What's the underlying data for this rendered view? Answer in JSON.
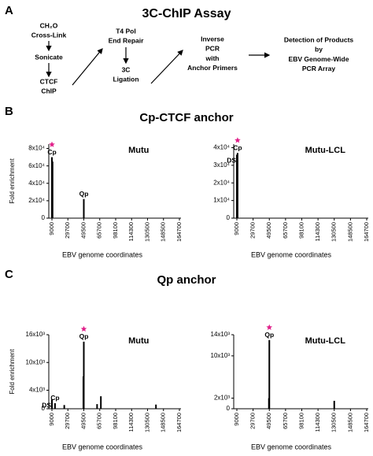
{
  "diagram": {
    "label": "A",
    "title": "3C-ChIP Assay",
    "steps": [
      [
        "CH₂O",
        "Cross-Link"
      ],
      [
        "Sonicate"
      ],
      [
        "CTCF",
        "ChIP"
      ],
      [
        "T4 Pol",
        "End Repair"
      ],
      [
        "3C",
        "Ligation"
      ],
      [
        "Inverse",
        "PCR",
        "with",
        "Anchor Primers"
      ],
      [
        "Detection of Products",
        "by",
        "EBV Genome-Wide",
        "PCR Array"
      ]
    ]
  },
  "panels": [
    {
      "label": "B",
      "title": "Cp-CTCF anchor",
      "xlabel": "EBV genome coordinates"
    },
    {
      "label": "C",
      "title": "Qp anchor",
      "xlabel": "EBV genome coordinates"
    }
  ],
  "chart_data": [
    {
      "type": "bar",
      "title": "Mutu",
      "ylabel": "Fold enrichment",
      "color": "#000000",
      "star_color": "#e0218a",
      "star_index": 0,
      "x": [
        9000,
        9800,
        49500
      ],
      "values": [
        70000,
        65000,
        22000
      ],
      "point_labels": [
        "Cp",
        null,
        "Qp"
      ],
      "xlim": [
        9000,
        164700
      ],
      "xticks": [
        9000,
        29700,
        49500,
        65700,
        98100,
        114300,
        130500,
        148500,
        164700
      ],
      "ylim": [
        0,
        85000
      ],
      "yticks": [
        0,
        {
          "value": 20000,
          "label": "2x10⁴"
        },
        {
          "value": 40000,
          "label": "4x10⁴"
        },
        {
          "value": 60000,
          "label": "6x10⁴"
        },
        {
          "value": 80000,
          "label": "8x10⁴"
        }
      ]
    },
    {
      "type": "bar",
      "title": "Mutu-LCL",
      "color": "#000000",
      "star_color": "#e0218a",
      "star_index": 1,
      "x": [
        9000,
        9900
      ],
      "values": [
        36000,
        37000
      ],
      "point_labels": [
        "DS",
        "Cp"
      ],
      "xlim": [
        9000,
        164700
      ],
      "xticks": [
        9000,
        29700,
        49500,
        65700,
        98100,
        114300,
        130500,
        148500,
        164700
      ],
      "ylim": [
        0,
        42000
      ],
      "yticks": [
        0,
        {
          "value": 10000,
          "label": "1x10⁴"
        },
        {
          "value": 20000,
          "label": "2x10⁴"
        },
        {
          "value": 30000,
          "label": "3x10⁴"
        },
        {
          "value": 40000,
          "label": "4x10⁴"
        }
      ]
    },
    {
      "type": "bar",
      "title": "Mutu",
      "ylabel": "Fold enrichment",
      "color": "#000000",
      "star_color": "#e0218a",
      "star_index": 4,
      "x": [
        9000,
        13000,
        25000,
        49000,
        49500,
        63000,
        68000,
        140000
      ],
      "values": [
        2000,
        1200,
        800,
        7000,
        14500,
        1000,
        2700,
        900
      ],
      "point_labels": [
        "DS",
        "Cp",
        null,
        null,
        "Qp",
        null,
        null,
        null
      ],
      "xlim": [
        9000,
        164700
      ],
      "xticks": [
        9000,
        29700,
        49500,
        65700,
        98100,
        114300,
        130500,
        148500,
        164700
      ],
      "ylim": [
        0,
        16000
      ],
      "yticks": [
        0,
        {
          "value": 4000,
          "label": "4x10³"
        },
        {
          "value": 10000,
          "label": "10x10³"
        },
        {
          "value": 16000,
          "label": "16x10³"
        }
      ]
    },
    {
      "type": "bar",
      "title": "Mutu-LCL",
      "color": "#000000",
      "star_color": "#e0218a",
      "star_index": 1,
      "x": [
        49000,
        49500,
        130500
      ],
      "values": [
        2000,
        13000,
        1500
      ],
      "point_labels": [
        null,
        "Qp",
        null
      ],
      "xlim": [
        9000,
        164700
      ],
      "xticks": [
        9000,
        29700,
        49500,
        65700,
        98100,
        114300,
        130500,
        148500,
        164700
      ],
      "ylim": [
        0,
        14000
      ],
      "yticks": [
        0,
        {
          "value": 2000,
          "label": "2x10³"
        },
        {
          "value": 10000,
          "label": "10x10³"
        },
        {
          "value": 14000,
          "label": "14x10³"
        }
      ]
    }
  ]
}
